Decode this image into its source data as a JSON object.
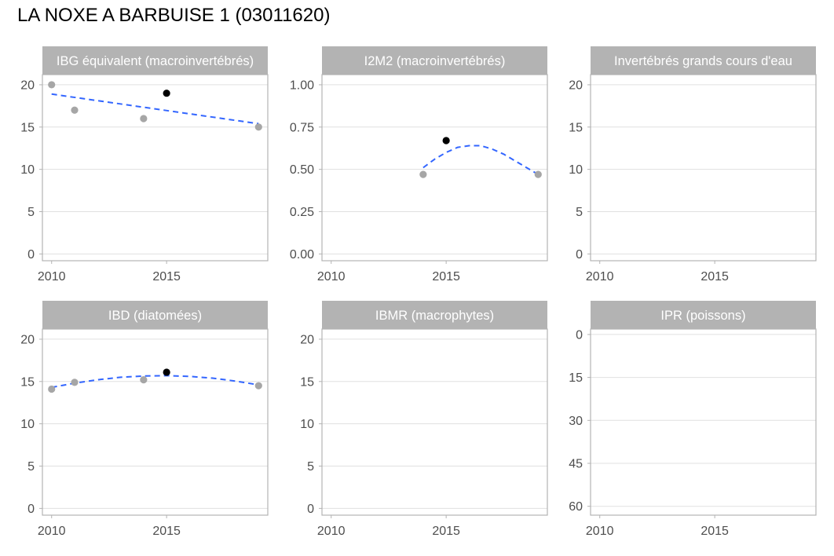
{
  "title": "LA NOXE A BARBUISE 1 (03011620)",
  "colors": {
    "strip_bg": "#b3b3b3",
    "strip_text": "#ffffff",
    "panel_border": "#b3b3b3",
    "grid": "#e0e0e0",
    "point_past": "#a6a6a6",
    "point_highlight": "#000000",
    "trend": "#3366ff",
    "tick_text": "#4d4d4d"
  },
  "chart_data": [
    {
      "type": "scatter",
      "title": "IBG équivalent (macroinvertébrés)",
      "xlim": [
        2009.6,
        2019.4
      ],
      "x_ticks": [
        2010,
        2015
      ],
      "ylim": [
        -0.8,
        21.2
      ],
      "y_ticks": [
        0,
        5,
        10,
        15,
        20
      ],
      "y_reversed": false,
      "points": [
        {
          "x": 2010,
          "y": 20,
          "highlight": false
        },
        {
          "x": 2011,
          "y": 17,
          "highlight": false
        },
        {
          "x": 2014,
          "y": 16,
          "highlight": false
        },
        {
          "x": 2015,
          "y": 19,
          "highlight": true
        },
        {
          "x": 2019,
          "y": 15,
          "highlight": false
        }
      ],
      "trend": [
        {
          "x": 2010,
          "y": 18.9
        },
        {
          "x": 2019,
          "y": 15.4
        }
      ]
    },
    {
      "type": "scatter",
      "title": "I2M2 (macroinvertébrés)",
      "xlim": [
        2009.6,
        2019.4
      ],
      "x_ticks": [
        2010,
        2015
      ],
      "ylim": [
        -0.04,
        1.06
      ],
      "y_ticks": [
        "0.00",
        "0.25",
        "0.50",
        "0.75",
        "1.00"
      ],
      "y_reversed": false,
      "points": [
        {
          "x": 2014,
          "y": 0.47,
          "highlight": false
        },
        {
          "x": 2015,
          "y": 0.67,
          "highlight": true
        },
        {
          "x": 2019,
          "y": 0.47,
          "highlight": false
        }
      ],
      "trend": [
        {
          "x": 2014,
          "y": 0.51
        },
        {
          "x": 2014.5,
          "y": 0.56
        },
        {
          "x": 2015,
          "y": 0.6
        },
        {
          "x": 2015.5,
          "y": 0.63
        },
        {
          "x": 2016,
          "y": 0.64
        },
        {
          "x": 2016.5,
          "y": 0.64
        },
        {
          "x": 2017,
          "y": 0.62
        },
        {
          "x": 2017.5,
          "y": 0.59
        },
        {
          "x": 2018,
          "y": 0.55
        },
        {
          "x": 2018.5,
          "y": 0.51
        },
        {
          "x": 2019,
          "y": 0.47
        }
      ]
    },
    {
      "type": "scatter",
      "title": "Invertébrés grands cours d'eau",
      "xlim": [
        2009.6,
        2019.4
      ],
      "x_ticks": [
        2010,
        2015
      ],
      "ylim": [
        -0.8,
        21.2
      ],
      "y_ticks": [
        0,
        5,
        10,
        15,
        20
      ],
      "y_reversed": false,
      "points": [],
      "trend": []
    },
    {
      "type": "scatter",
      "title": "IBD (diatomées)",
      "xlim": [
        2009.6,
        2019.4
      ],
      "x_ticks": [
        2010,
        2015
      ],
      "ylim": [
        -0.8,
        21.2
      ],
      "y_ticks": [
        0,
        5,
        10,
        15,
        20
      ],
      "y_reversed": false,
      "points": [
        {
          "x": 2010,
          "y": 14.1,
          "highlight": false
        },
        {
          "x": 2011,
          "y": 14.9,
          "highlight": false
        },
        {
          "x": 2014,
          "y": 15.2,
          "highlight": false
        },
        {
          "x": 2015,
          "y": 16.1,
          "highlight": true
        },
        {
          "x": 2019,
          "y": 14.5,
          "highlight": false
        }
      ],
      "trend": [
        {
          "x": 2010,
          "y": 14.3
        },
        {
          "x": 2011,
          "y": 14.8
        },
        {
          "x": 2012,
          "y": 15.2
        },
        {
          "x": 2013,
          "y": 15.5
        },
        {
          "x": 2014,
          "y": 15.65
        },
        {
          "x": 2015,
          "y": 15.7
        },
        {
          "x": 2016,
          "y": 15.6
        },
        {
          "x": 2017,
          "y": 15.4
        },
        {
          "x": 2018,
          "y": 15.05
        },
        {
          "x": 2019,
          "y": 14.6
        }
      ]
    },
    {
      "type": "scatter",
      "title": "IBMR (macrophytes)",
      "xlim": [
        2009.6,
        2019.4
      ],
      "x_ticks": [
        2010,
        2015
      ],
      "ylim": [
        -0.8,
        21.2
      ],
      "y_ticks": [
        0,
        5,
        10,
        15,
        20
      ],
      "y_reversed": false,
      "points": [],
      "trend": []
    },
    {
      "type": "scatter",
      "title": "IPR (poissons)",
      "xlim": [
        2009.6,
        2019.4
      ],
      "x_ticks": [
        2010,
        2015
      ],
      "ylim": [
        -1.9,
        63.1
      ],
      "y_ticks": [
        0,
        15,
        30,
        45,
        60
      ],
      "y_reversed": true,
      "points": [],
      "trend": []
    }
  ]
}
